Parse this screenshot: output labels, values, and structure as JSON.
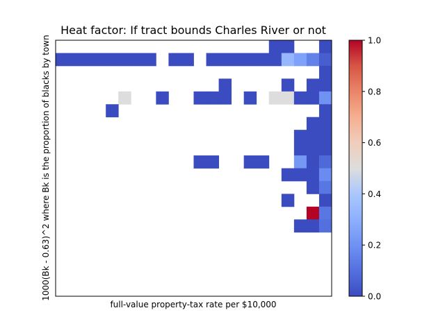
{
  "chart_data": {
    "type": "heatmap",
    "title": "Heat factor: If tract bounds Charles River or not",
    "xlabel": "full-value property-tax rate per $10,000",
    "ylabel": "1000(Bk - 0.63)^2 where Bk is the proportion of blacks by town",
    "n_cols": 22,
    "n_rows": 20,
    "colormap": "coolwarm",
    "colorbar": {
      "range": [
        0.0,
        1.0
      ],
      "ticks": [
        "0.0",
        "0.2",
        "0.4",
        "0.6",
        "0.8",
        "1.0"
      ]
    },
    "cells": [
      [
        17,
        0,
        0.0
      ],
      [
        18,
        0,
        0.0
      ],
      [
        21,
        0,
        0.0
      ],
      [
        0,
        1,
        0.0
      ],
      [
        1,
        1,
        0.0
      ],
      [
        2,
        1,
        0.0
      ],
      [
        3,
        1,
        0.0
      ],
      [
        4,
        1,
        0.0
      ],
      [
        5,
        1,
        0.0
      ],
      [
        6,
        1,
        0.0
      ],
      [
        7,
        1,
        0.0
      ],
      [
        9,
        1,
        0.0
      ],
      [
        10,
        1,
        0.0
      ],
      [
        12,
        1,
        0.0
      ],
      [
        13,
        1,
        0.0
      ],
      [
        14,
        1,
        0.0
      ],
      [
        15,
        1,
        0.0
      ],
      [
        16,
        1,
        0.0
      ],
      [
        17,
        1,
        0.0
      ],
      [
        18,
        1,
        0.33
      ],
      [
        19,
        1,
        0.25
      ],
      [
        20,
        1,
        0.15
      ],
      [
        21,
        1,
        0.05
      ],
      [
        21,
        2,
        0.0
      ],
      [
        13,
        3,
        0.0
      ],
      [
        18,
        3,
        0.0
      ],
      [
        20,
        3,
        0.0
      ],
      [
        21,
        3,
        0.0
      ],
      [
        5,
        4,
        0.5
      ],
      [
        8,
        4,
        0.0
      ],
      [
        11,
        4,
        0.0
      ],
      [
        12,
        4,
        0.0
      ],
      [
        13,
        4,
        0.0
      ],
      [
        15,
        4,
        0.0
      ],
      [
        17,
        4,
        0.5
      ],
      [
        18,
        4,
        0.5
      ],
      [
        19,
        4,
        0.0
      ],
      [
        20,
        4,
        0.0
      ],
      [
        21,
        4,
        0.2
      ],
      [
        4,
        5,
        0.0
      ],
      [
        21,
        5,
        0.0
      ],
      [
        20,
        6,
        0.0
      ],
      [
        21,
        6,
        0.0
      ],
      [
        19,
        7,
        0.0
      ],
      [
        20,
        7,
        0.0
      ],
      [
        21,
        7,
        0.0
      ],
      [
        19,
        8,
        0.0
      ],
      [
        20,
        8,
        0.0
      ],
      [
        21,
        8,
        0.0
      ],
      [
        11,
        9,
        0.0
      ],
      [
        12,
        9,
        0.0
      ],
      [
        15,
        9,
        0.0
      ],
      [
        16,
        9,
        0.0
      ],
      [
        19,
        9,
        0.22
      ],
      [
        20,
        9,
        0.0
      ],
      [
        21,
        9,
        0.08
      ],
      [
        18,
        10,
        0.0
      ],
      [
        19,
        10,
        0.0
      ],
      [
        20,
        10,
        0.0
      ],
      [
        21,
        10,
        0.18
      ],
      [
        20,
        11,
        0.0
      ],
      [
        21,
        11,
        0.12
      ],
      [
        18,
        12,
        0.0
      ],
      [
        21,
        12,
        0.0
      ],
      [
        20,
        13,
        1.0
      ],
      [
        21,
        13,
        0.12
      ],
      [
        19,
        14,
        0.0
      ],
      [
        20,
        14,
        0.0
      ],
      [
        21,
        14,
        0.1
      ]
    ]
  }
}
